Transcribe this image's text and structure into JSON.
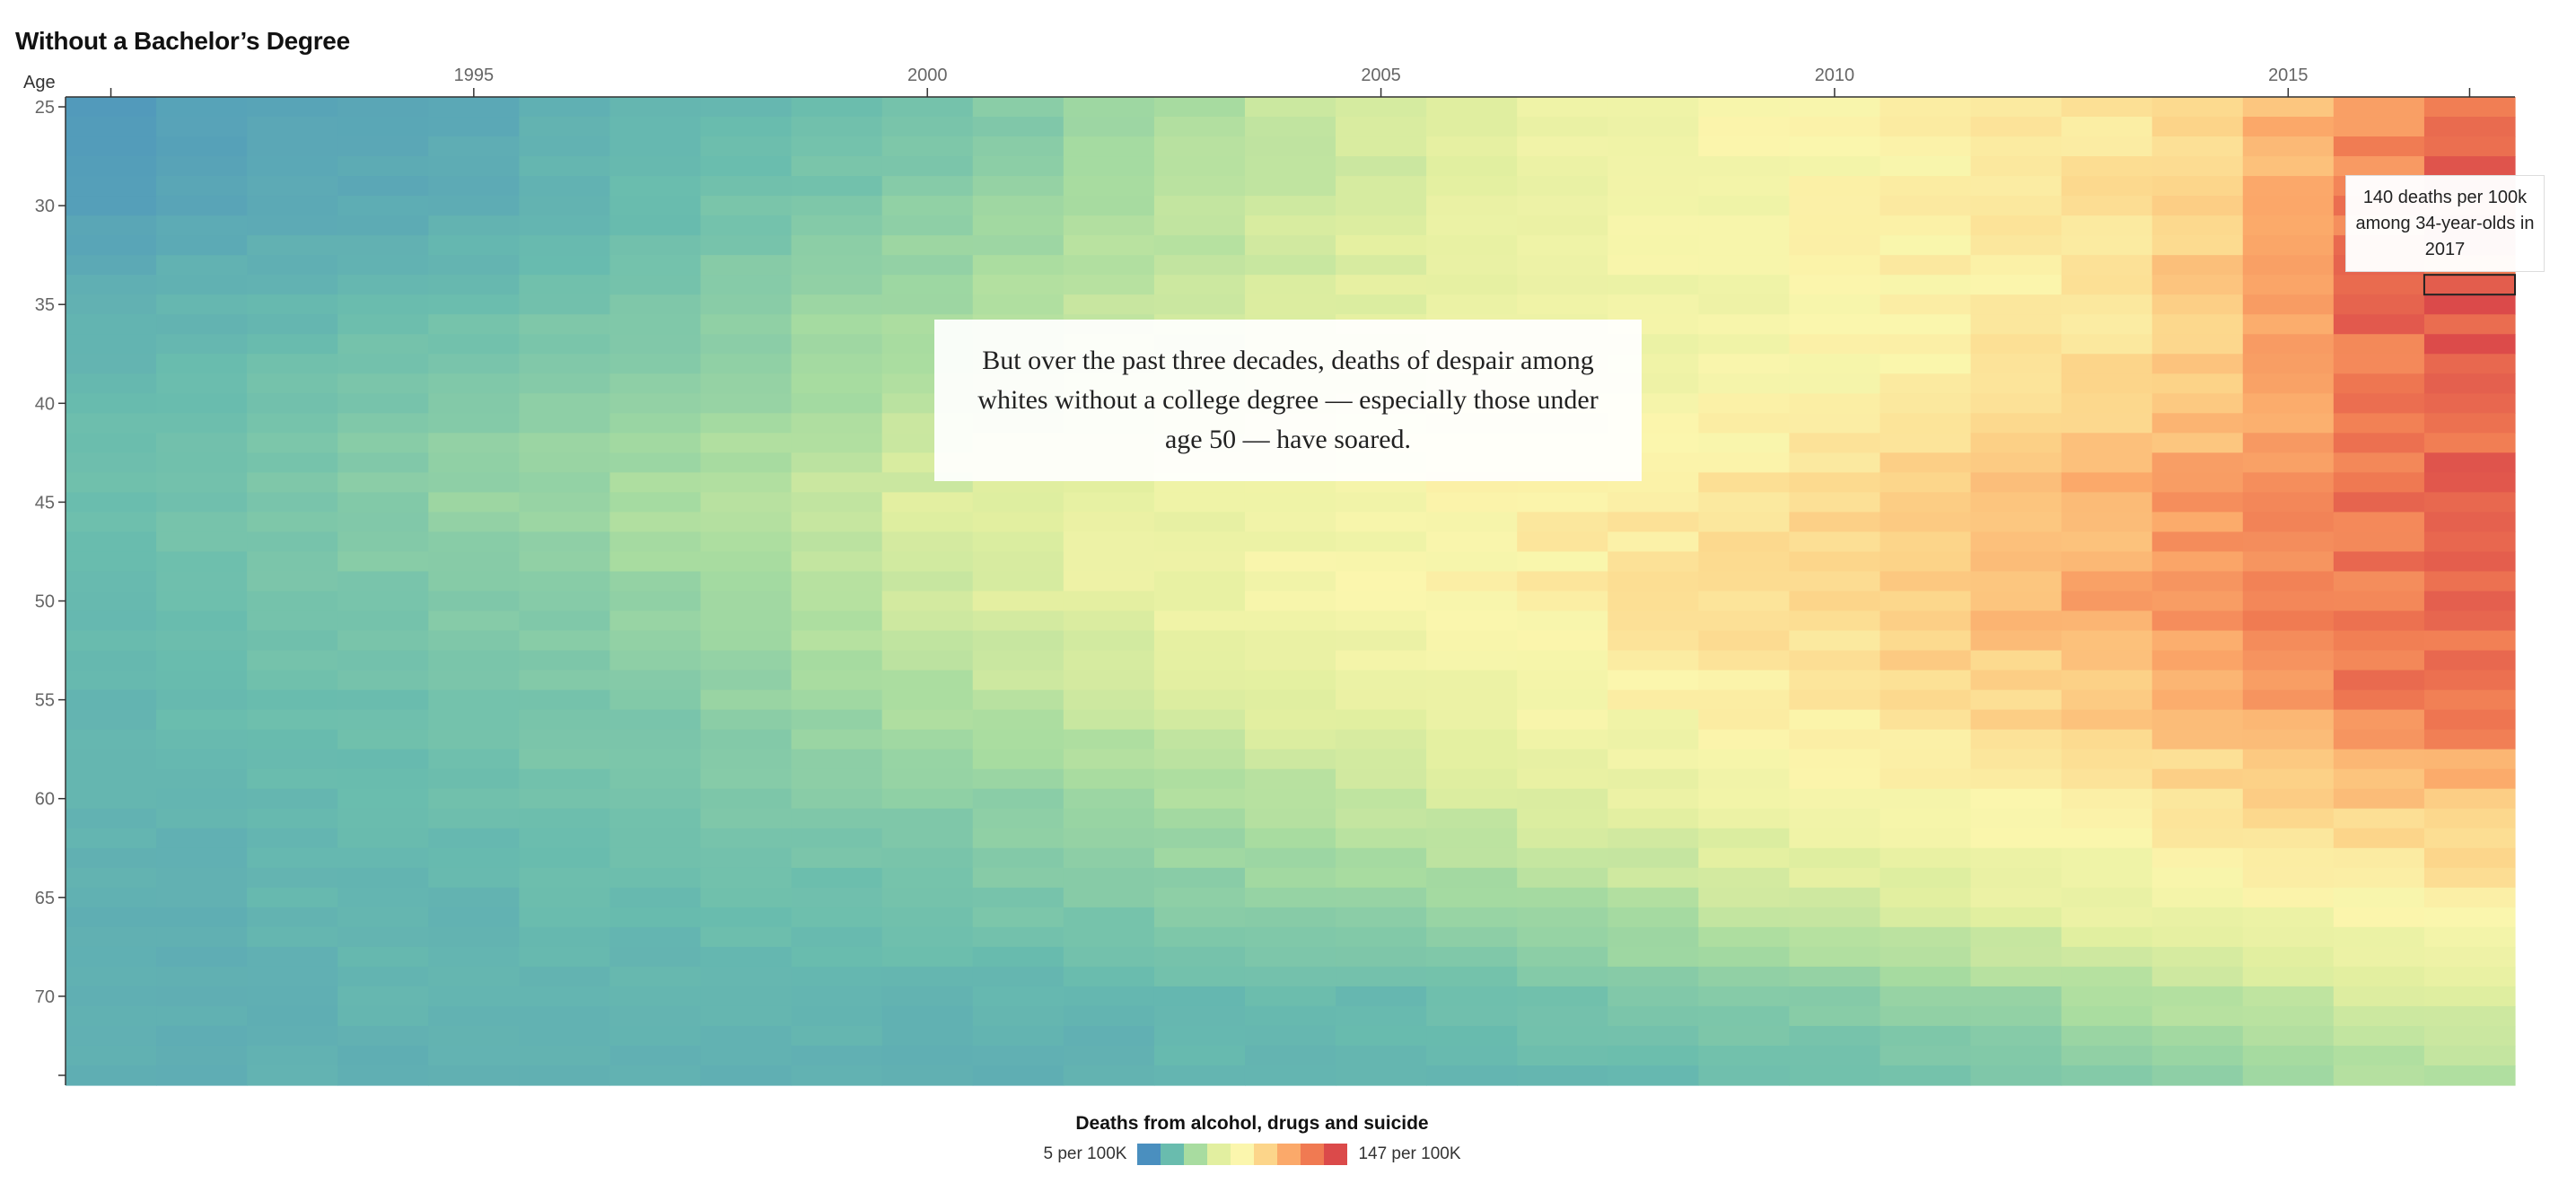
{
  "title": "Without a Bachelor’s Degree",
  "callout_text": "But over the past three decades, deaths of despair among whites without a college degree — especially those under age 50 — have soared.",
  "tooltip_text": "140 deaths per 100k among 34-year-olds in 2017",
  "legend": {
    "title": "Deaths from alcohol, drugs and suicide",
    "min_label": "5 per 100K",
    "max_label": "147 per 100K",
    "colors": [
      "#4a8fbf",
      "#69bcae",
      "#a8dca0",
      "#e2efa0",
      "#fbf6ad",
      "#fcd58a",
      "#fba96a",
      "#f07a52",
      "#db4a4a"
    ]
  },
  "chart_data": {
    "type": "heatmap",
    "title": "Without a Bachelor’s Degree",
    "xlabel": "",
    "ylabel": "Age",
    "x_ticks": [
      1995,
      2000,
      2005,
      2010,
      2015
    ],
    "y_ticks": [
      25,
      30,
      35,
      40,
      45,
      50,
      55,
      60,
      65,
      70
    ],
    "x_range": [
      1991,
      2017
    ],
    "y_range": [
      25,
      74
    ],
    "color_range": [
      5,
      147
    ],
    "highlight": {
      "year": 2017,
      "age": 34,
      "value": 140
    },
    "rows_by_age_5yr": [
      {
        "age": 25,
        "values": [
          10,
          12,
          14,
          14,
          15,
          18,
          20,
          22,
          24,
          26,
          30,
          36,
          42,
          48,
          52,
          58,
          64,
          68,
          72,
          76,
          78,
          82,
          86,
          92,
          105,
          118,
          128
        ]
      },
      {
        "age": 30,
        "values": [
          12,
          14,
          16,
          16,
          17,
          20,
          22,
          26,
          28,
          32,
          36,
          40,
          46,
          52,
          56,
          62,
          66,
          70,
          72,
          75,
          78,
          82,
          86,
          95,
          108,
          128,
          138
        ]
      },
      {
        "age": 35,
        "values": [
          18,
          20,
          20,
          22,
          24,
          26,
          28,
          32,
          36,
          40,
          44,
          48,
          50,
          54,
          58,
          62,
          66,
          68,
          70,
          74,
          78,
          82,
          86,
          98,
          115,
          134,
          140
        ]
      },
      {
        "age": 40,
        "values": [
          22,
          24,
          26,
          28,
          30,
          32,
          34,
          38,
          42,
          46,
          48,
          52,
          56,
          60,
          62,
          66,
          68,
          70,
          74,
          78,
          82,
          86,
          92,
          100,
          112,
          128,
          138
        ]
      },
      {
        "age": 45,
        "values": [
          24,
          26,
          28,
          32,
          36,
          38,
          42,
          46,
          50,
          56,
          60,
          64,
          66,
          70,
          72,
          76,
          80,
          84,
          88,
          92,
          96,
          100,
          108,
          114,
          122,
          130,
          136
        ]
      },
      {
        "age": 50,
        "values": [
          22,
          24,
          26,
          28,
          30,
          32,
          36,
          40,
          46,
          52,
          58,
          62,
          66,
          70,
          72,
          76,
          80,
          84,
          88,
          92,
          98,
          104,
          110,
          116,
          124,
          130,
          134
        ]
      },
      {
        "age": 55,
        "values": [
          20,
          22,
          24,
          24,
          26,
          28,
          30,
          34,
          38,
          42,
          46,
          50,
          54,
          58,
          64,
          68,
          72,
          76,
          80,
          84,
          88,
          94,
          100,
          106,
          116,
          126,
          132
        ]
      },
      {
        "age": 60,
        "values": [
          20,
          20,
          22,
          22,
          24,
          26,
          26,
          28,
          30,
          32,
          34,
          38,
          42,
          46,
          50,
          54,
          58,
          62,
          66,
          70,
          74,
          78,
          82,
          86,
          92,
          98,
          100
        ]
      },
      {
        "age": 65,
        "values": [
          18,
          18,
          20,
          20,
          20,
          22,
          22,
          24,
          24,
          26,
          28,
          30,
          32,
          34,
          36,
          38,
          42,
          46,
          50,
          54,
          58,
          62,
          66,
          70,
          74,
          78,
          80
        ]
      },
      {
        "age": 70,
        "values": [
          18,
          18,
          18,
          20,
          20,
          20,
          20,
          20,
          20,
          20,
          20,
          20,
          22,
          22,
          22,
          24,
          26,
          28,
          30,
          32,
          34,
          38,
          42,
          46,
          50,
          54,
          56
        ]
      },
      {
        "age": 74,
        "values": [
          18,
          18,
          18,
          18,
          18,
          18,
          18,
          18,
          18,
          18,
          18,
          18,
          20,
          20,
          20,
          20,
          22,
          22,
          24,
          24,
          26,
          28,
          30,
          34,
          38,
          42,
          44
        ]
      }
    ]
  }
}
